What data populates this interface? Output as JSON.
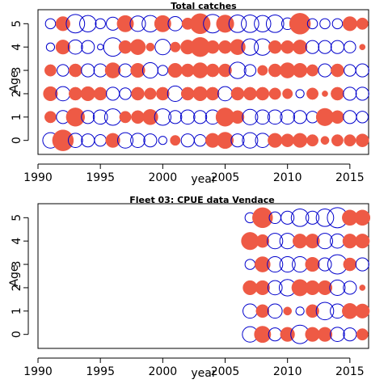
{
  "chart_data": [
    {
      "type": "scatter",
      "title": "Total catches",
      "xlabel": "year",
      "ylabel": "Age",
      "xlim": [
        1990,
        2016.5
      ],
      "ylim": [
        -0.6,
        5.6
      ],
      "x_ticks": [
        1990,
        1995,
        2000,
        2005,
        2010,
        2015
      ],
      "y_ticks": [
        0,
        1,
        2,
        3,
        4,
        5
      ],
      "marker_colors": {
        "positive": "#EE5A45",
        "negative": "#0000CC"
      },
      "years": [
        1991,
        1992,
        1993,
        1994,
        1995,
        1996,
        1997,
        1998,
        1999,
        2000,
        2001,
        2002,
        2003,
        2004,
        2005,
        2006,
        2007,
        2008,
        2009,
        2010,
        2011,
        2012,
        2013,
        2014,
        2015,
        2016
      ],
      "residuals": {
        "5": [
          -0.3,
          0.6,
          -1.0,
          -0.8,
          -0.3,
          -0.5,
          0.8,
          -0.7,
          -0.8,
          0.8,
          -0.6,
          0.4,
          1.2,
          -1.0,
          0.9,
          -0.9,
          -0.9,
          -0.8,
          -0.9,
          -0.4,
          1.3,
          -0.3,
          -0.3,
          -0.3,
          0.6,
          0.4
        ],
        "4": [
          -0.2,
          0.6,
          -0.6,
          -0.5,
          -0.1,
          -1.0,
          0.5,
          0.7,
          0.2,
          -0.7,
          0.3,
          0.6,
          1.1,
          0.5,
          0.5,
          0.7,
          -0.8,
          -0.8,
          0.5,
          0.5,
          0.6,
          -0.5,
          -0.5,
          -0.5,
          -0.4,
          0.1
        ],
        "3": [
          0.4,
          -0.4,
          0.5,
          -0.5,
          -0.5,
          0.7,
          -0.5,
          0.6,
          -0.7,
          -0.3,
          0.6,
          0.5,
          0.7,
          0.5,
          0.5,
          -0.8,
          -0.4,
          0.3,
          0.5,
          0.7,
          0.6,
          0.4,
          -0.5,
          0.5,
          -0.4,
          -0.5
        ],
        "2": [
          0.6,
          -0.6,
          0.5,
          0.6,
          0.5,
          -0.5,
          -0.4,
          0.5,
          0.4,
          0.5,
          -0.7,
          0.5,
          0.6,
          0.5,
          -0.6,
          0.5,
          0.5,
          0.5,
          0.4,
          0.3,
          -0.2,
          0.4,
          0.1,
          0.5,
          -0.5,
          -0.5
        ],
        "1": [
          0.4,
          -0.5,
          1.0,
          -0.5,
          -0.6,
          -0.8,
          0.4,
          0.5,
          0.7,
          -0.8,
          -0.5,
          -0.6,
          -0.5,
          -0.6,
          1.0,
          0.5,
          -0.7,
          -0.6,
          -0.6,
          -0.6,
          -0.5,
          -0.4,
          0.9,
          0.5,
          -0.5,
          -0.4
        ],
        "0": [
          -0.7,
          1.3,
          -0.6,
          -0.5,
          -0.4,
          0.6,
          -0.7,
          -0.6,
          -0.5,
          -0.2,
          0.3,
          -0.5,
          -0.4,
          0.6,
          0.8,
          -0.5,
          -0.7,
          -0.6,
          0.6,
          0.5,
          0.6,
          0.4,
          0.2,
          0.4,
          0.4,
          0.5
        ]
      }
    },
    {
      "type": "scatter",
      "title": "Fleet 03:  CPUE data Vendace",
      "xlabel": "year",
      "ylabel": "Age",
      "xlim": [
        1990,
        2016.5
      ],
      "ylim": [
        -0.6,
        5.6
      ],
      "x_ticks": [
        1990,
        1995,
        2000,
        2005,
        2010,
        2015
      ],
      "y_ticks": [
        0,
        1,
        2,
        3,
        4,
        5
      ],
      "marker_colors": {
        "positive": "#EE5A45",
        "negative": "#0000CC"
      },
      "years": [
        2007,
        2008,
        2009,
        2010,
        2011,
        2012,
        2013,
        2014,
        2015,
        2016
      ],
      "residuals": {
        "5": [
          -0.3,
          1.2,
          -0.4,
          -0.5,
          -0.9,
          -0.5,
          -0.9,
          -1.2,
          0.7,
          0.7
        ],
        "4": [
          0.9,
          0.5,
          -0.7,
          -0.7,
          0.6,
          0.6,
          -0.7,
          -0.6,
          0.6,
          0.6
        ],
        "3": [
          -0.3,
          0.7,
          -0.7,
          -0.7,
          -0.7,
          0.6,
          -0.5,
          -1.1,
          0.5,
          -0.5
        ],
        "2": [
          0.6,
          0.6,
          -0.6,
          -0.8,
          0.8,
          0.6,
          0.6,
          -0.7,
          -0.5,
          0.1
        ],
        "1": [
          -0.6,
          0.5,
          -0.6,
          0.2,
          -0.2,
          0.5,
          -0.9,
          -0.6,
          0.7,
          0.6
        ],
        "0": [
          -0.7,
          0.8,
          -0.5,
          0.6,
          -1.0,
          0.6,
          0.6,
          -0.6,
          -0.5,
          0.4
        ]
      }
    }
  ]
}
